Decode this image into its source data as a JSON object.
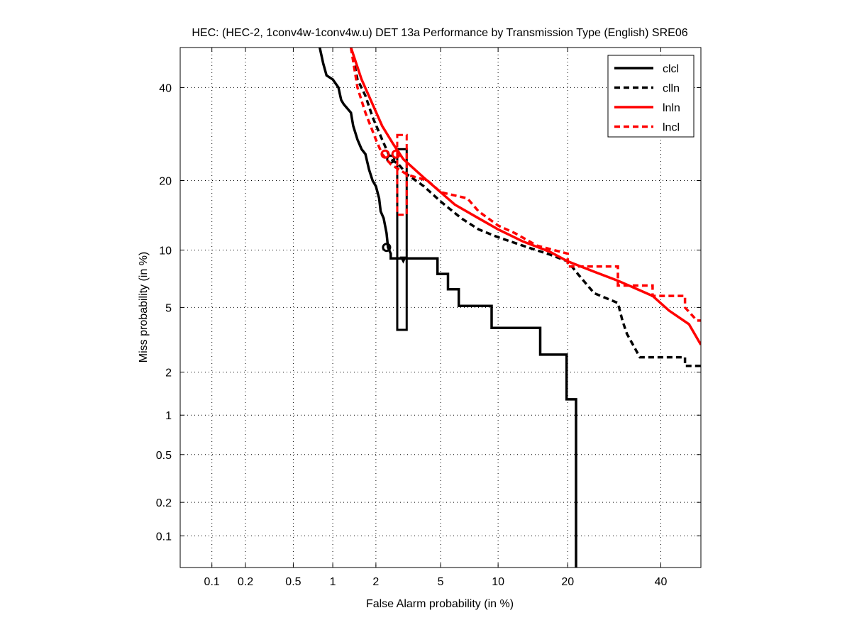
{
  "chart_data": {
    "type": "line",
    "title": "HEC: (HEC-2, 1conv4w-1conv4w.u) DET 13a Performance by Transmission Type (English) SRE06",
    "xlabel": "False Alarm probability (in %)",
    "ylabel": "Miss probability (in %)",
    "xscale": "probit",
    "yscale": "probit",
    "xlim": [
      0.05,
      50
    ],
    "ylim": [
      0.05,
      50
    ],
    "xticks": [
      0.1,
      0.2,
      0.5,
      1,
      2,
      5,
      10,
      20,
      40
    ],
    "xtick_labels": [
      "0.1",
      "0.2",
      "0.5",
      "1",
      "2",
      "5",
      "10",
      "20",
      "40"
    ],
    "yticks": [
      0.1,
      0.2,
      0.5,
      1,
      2,
      5,
      10,
      20,
      40
    ],
    "ytick_labels": [
      "0.1",
      "0.2",
      "0.5",
      "1",
      "2",
      "5",
      "10",
      "20",
      "40"
    ],
    "grid": true,
    "legend_position": "top-right",
    "series": [
      {
        "name": "clcl",
        "color": "#000000",
        "dash": false,
        "x": [
          0.8,
          0.85,
          0.9,
          1.0,
          1.1,
          1.15,
          1.2,
          1.35,
          1.4,
          1.5,
          1.6,
          1.7,
          1.8,
          1.9,
          2.0,
          2.1,
          2.15,
          2.25,
          2.35,
          2.4,
          2.5,
          2.5,
          4.8,
          4.8,
          5.5,
          5.5,
          6.3,
          6.3,
          9.3,
          9.3,
          15.5,
          15.5,
          19.8,
          19.8,
          21.5,
          21.5
        ],
        "y": [
          50,
          46,
          43,
          42,
          40,
          37,
          36,
          34,
          31,
          28,
          26,
          25,
          22,
          20,
          19,
          17,
          15,
          14,
          12,
          10.3,
          9.6,
          9.1,
          9.1,
          7.6,
          7.6,
          6.3,
          6.3,
          5.1,
          5.1,
          3.8,
          3.8,
          2.6,
          2.6,
          1.3,
          1.3,
          0.05
        ],
        "min_dcf": [
          2.35,
          10.3
        ],
        "act_dcf": [
          3.0,
          9.0
        ],
        "box": {
          "x": [
            2.75,
            3.15
          ],
          "y": [
            3.7,
            26
          ]
        }
      },
      {
        "name": "clln",
        "color": "#000000",
        "dash": true,
        "x": [
          1.35,
          1.5,
          1.7,
          1.9,
          2.2,
          2.5,
          2.8,
          3.2,
          4,
          5,
          6.5,
          8,
          10,
          13,
          17,
          20,
          22,
          25,
          30,
          31,
          32,
          35,
          46,
          46,
          50
        ],
        "y": [
          50,
          42,
          38,
          33,
          28,
          24,
          23,
          21,
          19,
          16.5,
          14,
          12.5,
          11.5,
          10.5,
          9.5,
          8.8,
          7.5,
          6,
          5.3,
          4.2,
          3.5,
          2.5,
          2.5,
          2.2,
          2.2
        ],
        "min_dcf": [
          2.5,
          24
        ]
      },
      {
        "name": "lnln",
        "color": "#ff0000",
        "dash": false,
        "x": [
          1.35,
          1.6,
          1.9,
          2.2,
          2.6,
          3,
          4,
          5,
          6,
          8,
          10,
          13,
          17,
          20,
          25,
          30,
          38,
          42,
          47,
          50
        ],
        "y": [
          50,
          42,
          36,
          31,
          27,
          24,
          20.5,
          18,
          16,
          14,
          12.5,
          11,
          9.8,
          8.8,
          7.8,
          7,
          5.8,
          4.8,
          4,
          3
        ],
        "min_dcf": [
          2.7,
          25
        ]
      },
      {
        "name": "lncl",
        "color": "#ff0000",
        "dash": true,
        "x": [
          1.35,
          1.5,
          1.7,
          2.0,
          2.2,
          2.5,
          3.2,
          4.2,
          5,
          7,
          8,
          10,
          12,
          15,
          20,
          20,
          30,
          30,
          38,
          38,
          46,
          46,
          49,
          50
        ],
        "y": [
          50,
          40,
          34,
          28,
          25,
          23,
          21,
          20,
          18,
          17,
          15,
          13,
          12,
          10.5,
          9.6,
          8.3,
          8.3,
          6.6,
          6.6,
          5.8,
          5.8,
          5,
          4.2,
          4.2
        ],
        "min_dcf": [
          2.3,
          25
        ],
        "box": {
          "x": [
            2.75,
            3.15
          ],
          "y": [
            14.5,
            29
          ]
        }
      }
    ]
  }
}
